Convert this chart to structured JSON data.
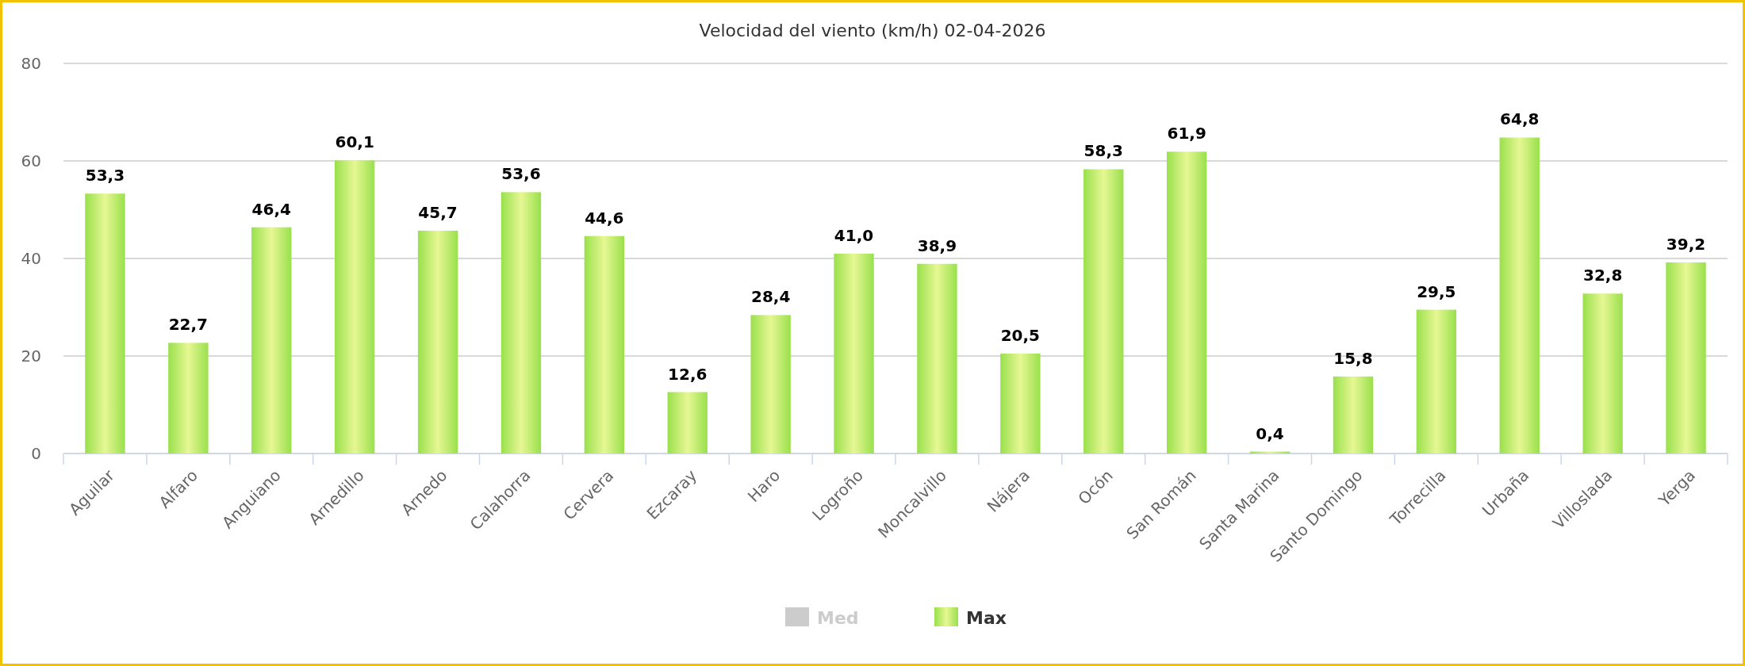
{
  "chart_data": {
    "type": "bar",
    "title": "Velocidad del viento (km/h) 02-04-2026",
    "categories": [
      "Aguilar",
      "Alfaro",
      "Anguiano",
      "Arnedillo",
      "Arnedo",
      "Calahorra",
      "Cervera",
      "Ezcaray",
      "Haro",
      "Logroño",
      "Moncalvillo",
      "Nájera",
      "Ocón",
      "San Román",
      "Santa Marina",
      "Santo Domingo",
      "Torrecilla",
      "Urbaña",
      "Villoslada",
      "Yerga"
    ],
    "series": [
      {
        "name": "Med",
        "color": "#cccccc",
        "values": [
          null,
          null,
          null,
          null,
          null,
          null,
          null,
          null,
          null,
          null,
          null,
          null,
          null,
          null,
          null,
          null,
          null,
          null,
          null,
          null
        ]
      },
      {
        "name": "Max",
        "color": "#99e04c",
        "values": [
          53.3,
          22.7,
          46.4,
          60.1,
          45.7,
          53.6,
          44.6,
          12.6,
          28.4,
          41.0,
          38.9,
          20.5,
          58.3,
          61.9,
          0.4,
          15.8,
          29.5,
          64.8,
          32.8,
          39.2
        ],
        "value_labels": [
          "53,3",
          "22,7",
          "46,4",
          "60,1",
          "45,7",
          "53,6",
          "44,6",
          "12,6",
          "28,4",
          "41,0",
          "38,9",
          "20,5",
          "58,3",
          "61,9",
          "0,4",
          "15,8",
          "29,5",
          "64,8",
          "32,8",
          "39,2"
        ]
      }
    ],
    "ylim": [
      0,
      80
    ],
    "yticks": [
      0,
      20,
      40,
      60,
      80
    ],
    "grid": "y",
    "legend": "bottom"
  }
}
